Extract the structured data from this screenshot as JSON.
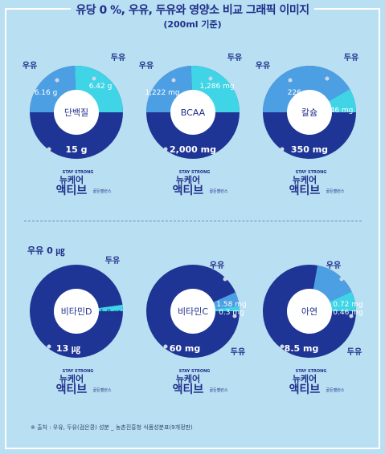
{
  "title": "유당 0 %, 우유, 두유와 영양소 비교 그래픽 이미지",
  "subtitle": "(200ml 기준)",
  "label_milk": "우유",
  "label_soy": "두유",
  "milk_zero_label": "우유 0 ㎍",
  "brand": {
    "tag": "STAY STRONG",
    "line1": "뉴케어",
    "line2": "액티브",
    "sub": "골든밸런스"
  },
  "footer": "※ 출처 : 우유, 두유(검은콩) 성분 _ 농촌진흥청 식품성분표(9개정판)",
  "colors": {
    "milk": "#4d9fe4",
    "soy": "#3fd4e6",
    "product": "#1f3596"
  },
  "chart_data": [
    {
      "type": "pie",
      "center_label": "단백질",
      "milk": {
        "label": "6.16 g",
        "value": 6.16
      },
      "soy": {
        "label": "6.42 g",
        "value": 6.42
      },
      "product": {
        "label": "15 g",
        "value": 15
      }
    },
    {
      "type": "pie",
      "center_label": "BCAA",
      "milk": {
        "label": "1,222 mg",
        "value": 1222
      },
      "soy": {
        "label": "1,286 mg",
        "value": 1286
      },
      "product": {
        "label": "2,000 mg",
        "value": 2000
      }
    },
    {
      "type": "pie",
      "center_label": "칼슘",
      "milk": {
        "label": "226 mg",
        "value": 226
      },
      "soy": {
        "label": "46 mg",
        "value": 46
      },
      "product": {
        "label": "350 mg",
        "value": 350
      }
    },
    {
      "type": "pie",
      "center_label": "비타민D",
      "milk": {
        "label": "",
        "value": 0
      },
      "soy": {
        "label": "1.9 ㎍",
        "value": 1.9
      },
      "product": {
        "label": "13 ㎍",
        "value": 13
      }
    },
    {
      "type": "pie",
      "center_label": "비타민C",
      "milk": {
        "label": "1.58 mg",
        "value": 1.58
      },
      "soy": {
        "label": "0.3 mg",
        "value": 0.3
      },
      "product": {
        "label": "60 mg",
        "value": 60
      }
    },
    {
      "type": "pie",
      "center_label": "아연",
      "milk": {
        "label": "0.72 mg",
        "value": 0.72
      },
      "soy": {
        "label": "0.46 mg",
        "value": 0.46
      },
      "product": {
        "label": "8.5 mg",
        "value": 8.5
      }
    }
  ]
}
